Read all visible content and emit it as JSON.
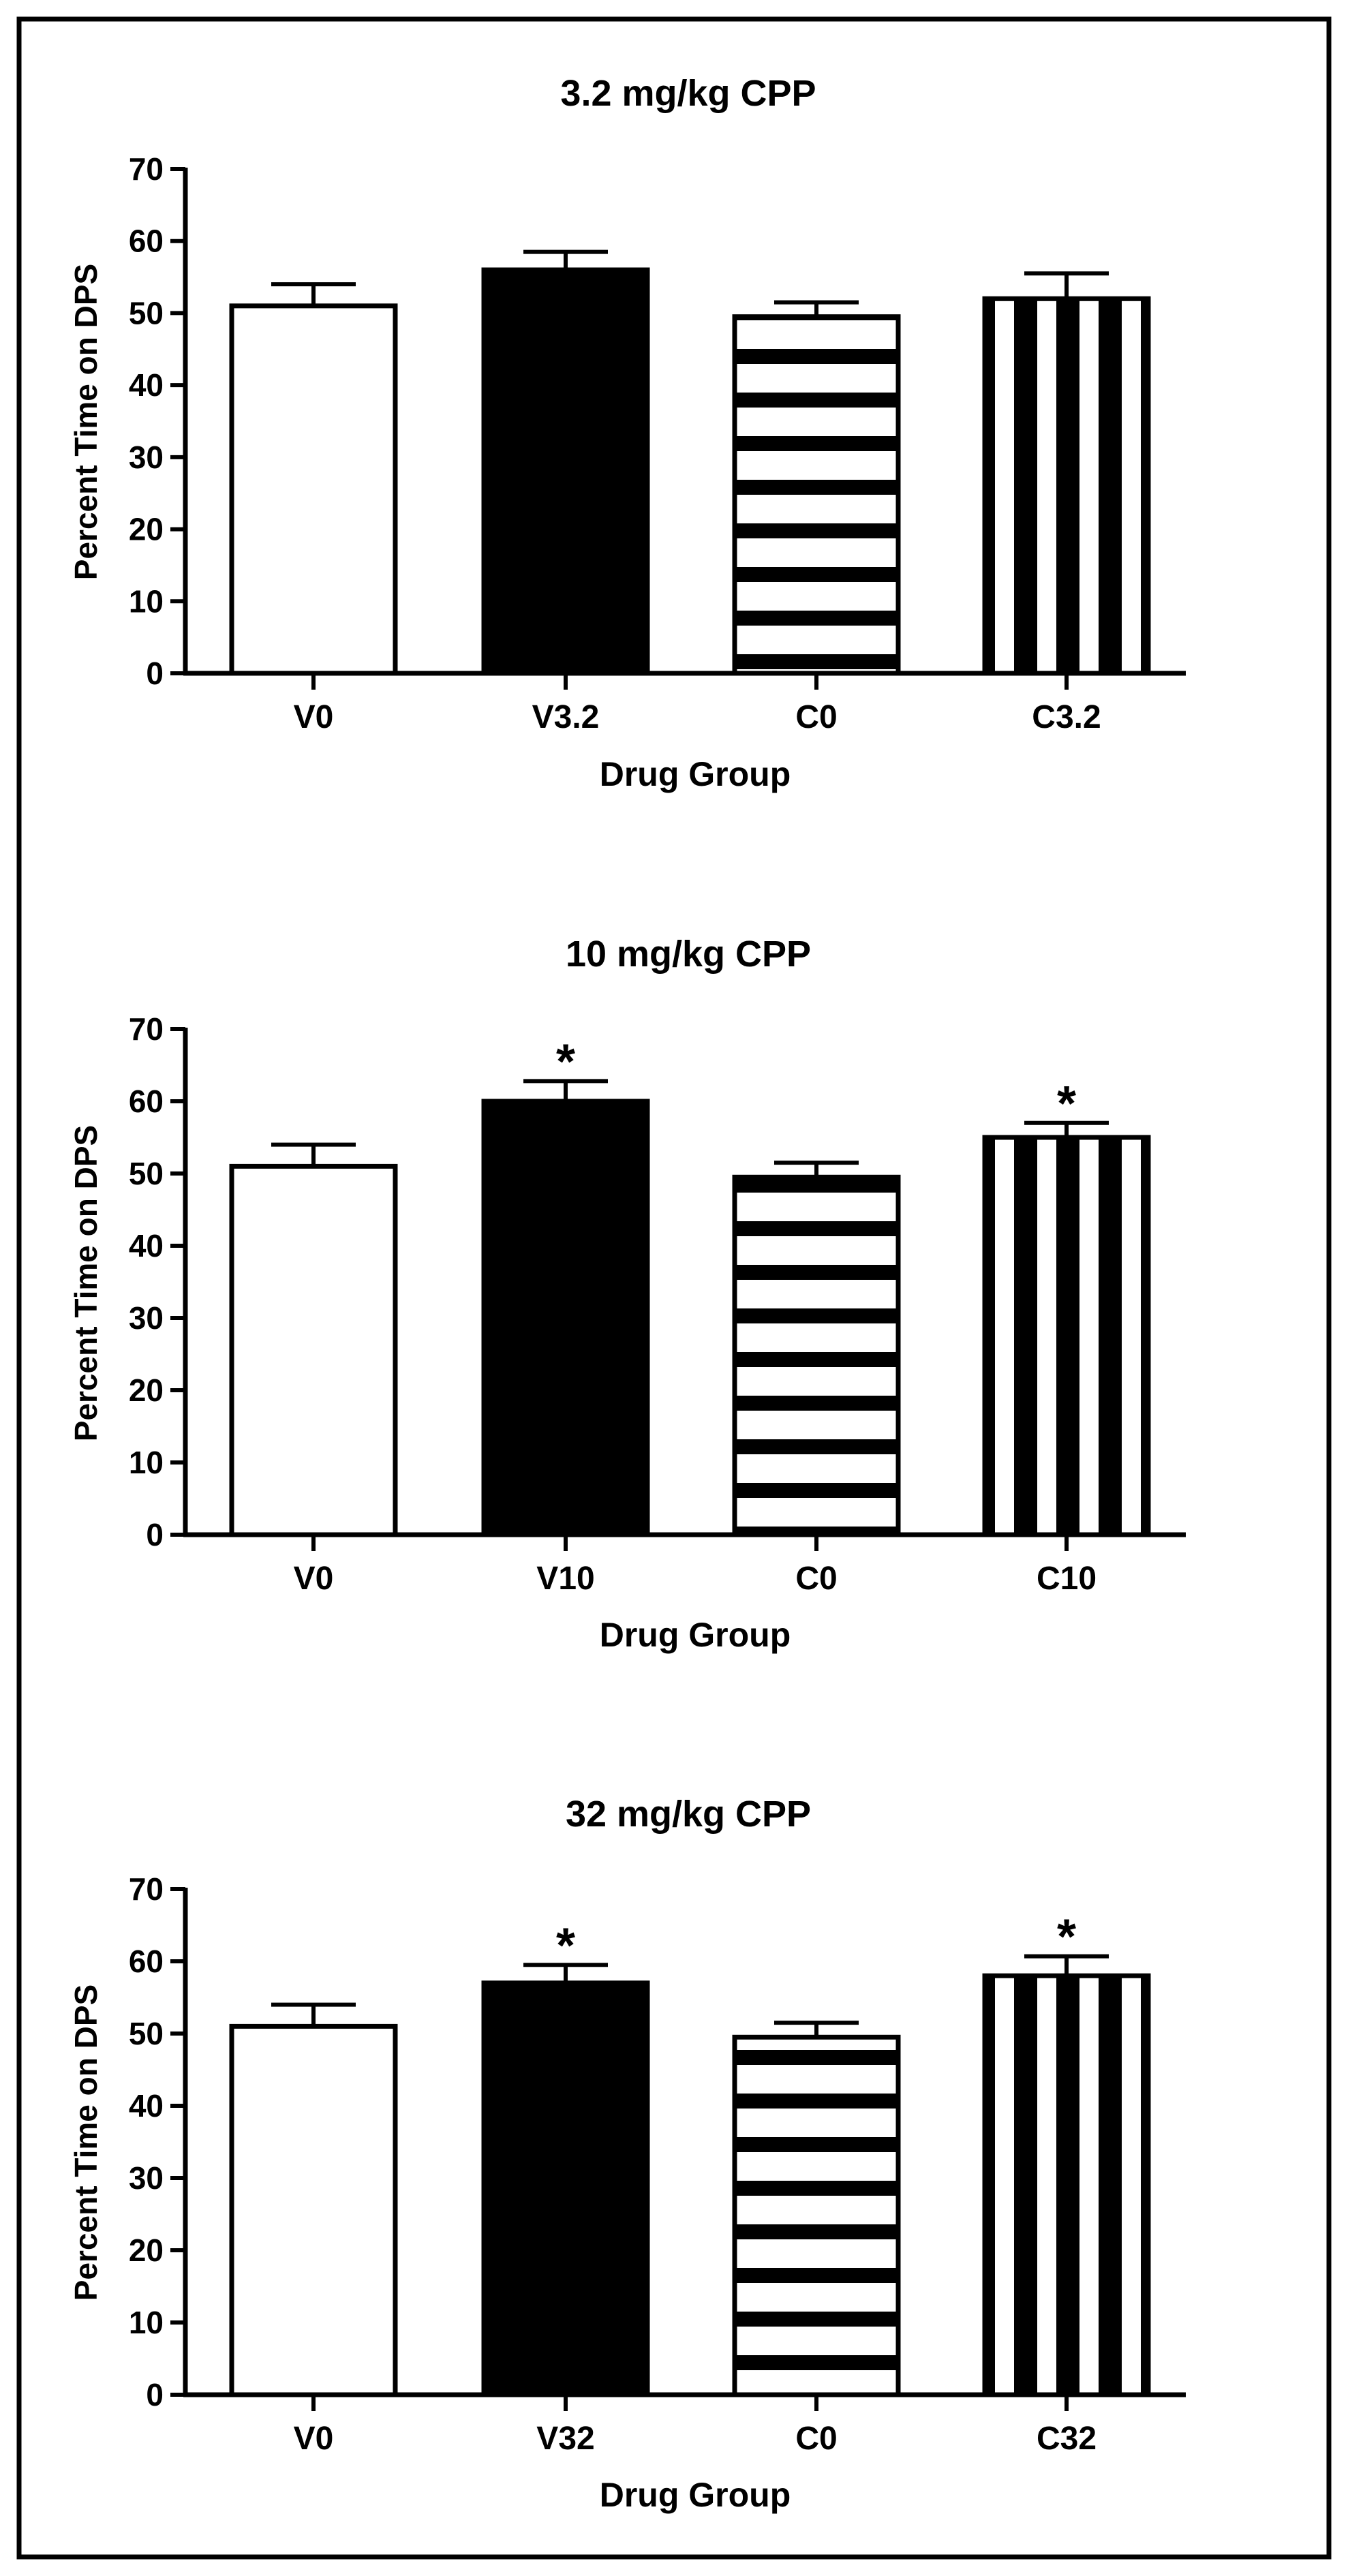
{
  "chart_data": [
    {
      "type": "bar",
      "title": "3.2 mg/kg CPP",
      "xlabel": "Drug Group",
      "ylabel": "Percent Time on DPS",
      "ylim": [
        0,
        70
      ],
      "yticks": [
        0,
        10,
        20,
        30,
        40,
        50,
        60,
        70
      ],
      "categories": [
        "V0",
        "V3.2",
        "C0",
        "C3.2"
      ],
      "values": [
        51,
        56,
        49.5,
        52
      ],
      "errors": [
        3,
        2.5,
        2,
        3.5
      ],
      "significant": [
        false,
        false,
        false,
        false
      ],
      "significance_marker": "*",
      "patterns": [
        "white",
        "black",
        "horizontal-stripes",
        "vertical-stripes"
      ]
    },
    {
      "type": "bar",
      "title": "10 mg/kg CPP",
      "xlabel": "Drug Group",
      "ylabel": "Percent Time on DPS",
      "ylim": [
        0,
        70
      ],
      "yticks": [
        0,
        10,
        20,
        30,
        40,
        50,
        60,
        70
      ],
      "categories": [
        "V0",
        "V10",
        "C0",
        "C10"
      ],
      "values": [
        51,
        60,
        49.5,
        55
      ],
      "errors": [
        3,
        2.8,
        2,
        2
      ],
      "significant": [
        false,
        true,
        false,
        true
      ],
      "significance_marker": "*",
      "patterns": [
        "white",
        "black",
        "horizontal-stripes",
        "vertical-stripes"
      ]
    },
    {
      "type": "bar",
      "title": "32 mg/kg CPP",
      "xlabel": "Drug Group",
      "ylabel": "Percent Time on DPS",
      "ylim": [
        0,
        70
      ],
      "yticks": [
        0,
        10,
        20,
        30,
        40,
        50,
        60,
        70
      ],
      "categories": [
        "V0",
        "V32",
        "C0",
        "C32"
      ],
      "values": [
        51,
        57,
        49.5,
        58
      ],
      "errors": [
        3,
        2.5,
        2,
        2.7
      ],
      "significant": [
        false,
        true,
        false,
        true
      ],
      "significance_marker": "*",
      "patterns": [
        "white",
        "black",
        "horizontal-stripes",
        "vertical-stripes"
      ]
    }
  ]
}
